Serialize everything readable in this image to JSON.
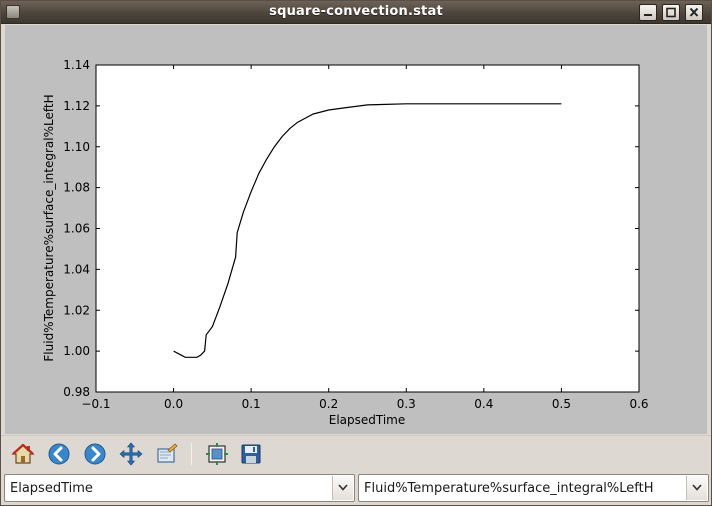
{
  "window": {
    "title": "square-convection.stat"
  },
  "titlebar": {
    "icons": [
      "app-icon",
      "minimize-icon",
      "maximize-icon",
      "close-icon"
    ]
  },
  "toolbar": {
    "buttons": [
      {
        "name": "home",
        "icon": "home-icon"
      },
      {
        "name": "back",
        "icon": "arrow-left-icon"
      },
      {
        "name": "forward",
        "icon": "arrow-right-icon"
      },
      {
        "name": "pan",
        "icon": "move-icon"
      },
      {
        "name": "zoom",
        "icon": "zoom-rect-icon"
      },
      {
        "name": "configure-subplots",
        "icon": "subplots-icon"
      },
      {
        "name": "save",
        "icon": "floppy-icon"
      }
    ]
  },
  "selectors": {
    "x_field": "ElapsedTime",
    "y_field": "Fluid%Temperature%surface_integral%LeftH"
  },
  "chart_data": {
    "type": "line",
    "title": "",
    "xlabel": "ElapsedTime",
    "ylabel": "Fluid%Temperature%surface_integral%LeftH",
    "xlim": [
      -0.1,
      0.6
    ],
    "ylim": [
      0.98,
      1.14
    ],
    "xticks": [
      "−0.1",
      "0.0",
      "0.1",
      "0.2",
      "0.3",
      "0.4",
      "0.5",
      "0.6"
    ],
    "yticks": [
      "0.98",
      "1.00",
      "1.02",
      "1.04",
      "1.06",
      "1.08",
      "1.10",
      "1.12",
      "1.14"
    ],
    "grid": false,
    "colors": {
      "line": "#000000",
      "axes_bg": "#ffffff",
      "figure_bg": "#bfbfbf"
    },
    "series": [
      {
        "x": [
          0.0,
          0.005,
          0.01,
          0.015,
          0.02,
          0.025,
          0.03,
          0.035,
          0.04,
          0.042,
          0.05,
          0.06,
          0.07,
          0.08,
          0.082,
          0.09,
          0.1,
          0.11,
          0.12,
          0.13,
          0.14,
          0.15,
          0.16,
          0.17,
          0.18,
          0.19,
          0.2,
          0.22,
          0.25,
          0.3,
          0.35,
          0.4,
          0.45,
          0.5
        ],
        "y": [
          1.0,
          0.999,
          0.998,
          0.997,
          0.997,
          0.997,
          0.997,
          0.998,
          1.0,
          1.008,
          1.012,
          1.022,
          1.033,
          1.046,
          1.058,
          1.068,
          1.078,
          1.087,
          1.094,
          1.1,
          1.105,
          1.109,
          1.112,
          1.114,
          1.116,
          1.117,
          1.118,
          1.119,
          1.1205,
          1.121,
          1.121,
          1.121,
          1.121,
          1.121
        ]
      }
    ]
  }
}
